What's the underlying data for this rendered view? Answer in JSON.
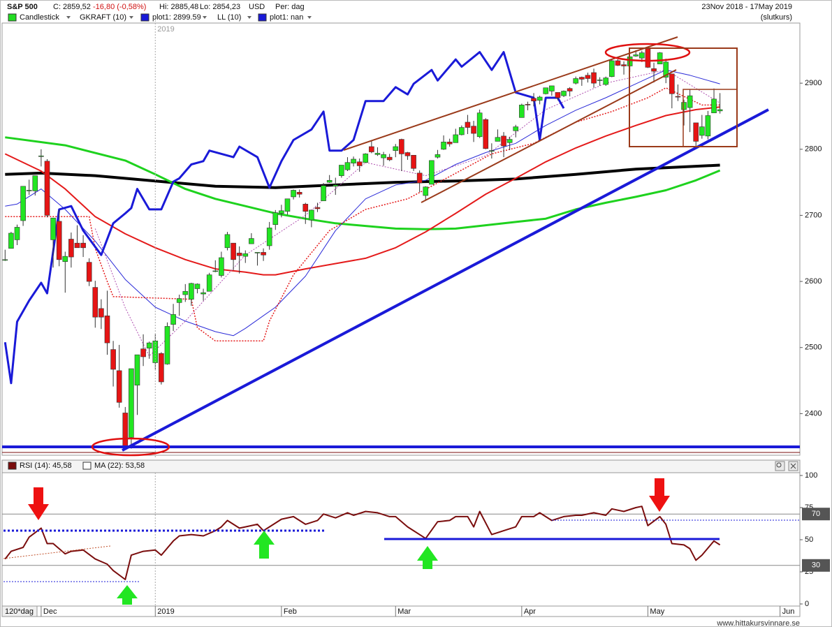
{
  "header": {
    "symbol": "S&P 500",
    "close": "C: 2859,52",
    "change": "-16,80 (-0,58%)",
    "high": "Hi: 2885,48",
    "low": "Lo: 2854,23",
    "currency": "USD",
    "period": "Per: dag",
    "range": "23Nov 2018 - 17May 2019",
    "mode": "(slutkurs)"
  },
  "watermark": "www.hittakursvinnare.se",
  "chart_data": [
    {
      "type": "candlestick",
      "legend": [
        {
          "label": "Candlestick",
          "color": "#22dd22"
        },
        {
          "label": "GKRAFT (10)"
        },
        {
          "label": "plot1: 2899.59",
          "color": "#1a1ad8"
        },
        {
          "label": "LL (10)"
        },
        {
          "label": "plot1: nan",
          "color": "#1a1ad8"
        }
      ],
      "up_color": "#22e622",
      "down_color": "#e61414",
      "xlim": [
        -0.5,
        132.3
      ],
      "ylim": [
        2337,
        2991
      ],
      "yticks": [
        2400,
        2500,
        2600,
        2700,
        2800,
        2900
      ],
      "open": [
        2633,
        2650,
        2663,
        2692,
        2737,
        2737,
        2790,
        2782,
        2663,
        2691,
        2630,
        2664,
        2658,
        2658,
        2629,
        2591,
        2559,
        2548,
        2497,
        2465,
        2401,
        2364,
        2443,
        2498,
        2499,
        2477,
        2491,
        2475,
        2535,
        2568,
        2580,
        2573,
        2589,
        2581,
        2585,
        2615,
        2609,
        2651,
        2658,
        2643,
        2638,
        2657,
        2644,
        2644,
        2654,
        2686,
        2703,
        2706,
        2728,
        2735,
        2717,
        2693,
        2712,
        2722,
        2750,
        2744,
        2760,
        2769,
        2779,
        2781,
        2780,
        2804,
        2792,
        2787,
        2788,
        2798,
        2815,
        2795,
        2791,
        2764,
        2730,
        2747,
        2788,
        2800,
        2811,
        2810,
        2822,
        2841,
        2835,
        2819,
        2845,
        2797,
        2812,
        2820,
        2810,
        2828,
        2848,
        2868,
        2877,
        2874,
        2884,
        2888,
        2886,
        2881,
        2892,
        2900,
        2909,
        2912,
        2916,
        2904,
        2898,
        2910,
        2934,
        2928,
        2926,
        2941,
        2938,
        2952,
        2922,
        2929,
        2909,
        2914,
        2880,
        2860,
        2863,
        2840,
        2821,
        2820,
        2855,
        2858
      ],
      "high": [
        2648,
        2675,
        2686,
        2744,
        2754,
        2760,
        2800,
        2785,
        2696,
        2708,
        2645,
        2674,
        2685,
        2670,
        2635,
        2601,
        2573,
        2586,
        2510,
        2504,
        2410,
        2468,
        2489,
        2520,
        2509,
        2520,
        2493,
        2538,
        2566,
        2580,
        2596,
        2598,
        2597,
        2589,
        2613,
        2632,
        2645,
        2675,
        2658,
        2653,
        2647,
        2673,
        2644,
        2650,
        2690,
        2708,
        2716,
        2725,
        2739,
        2739,
        2719,
        2708,
        2719,
        2749,
        2761,
        2757,
        2776,
        2788,
        2789,
        2786,
        2794,
        2813,
        2803,
        2796,
        2793,
        2808,
        2816,
        2796,
        2791,
        2768,
        2744,
        2783,
        2799,
        2821,
        2816,
        2831,
        2836,
        2852,
        2843,
        2860,
        2847,
        2809,
        2830,
        2826,
        2819,
        2837,
        2869,
        2872,
        2885,
        2881,
        2893,
        2896,
        2886,
        2889,
        2894,
        2910,
        2910,
        2916,
        2922,
        2909,
        2910,
        2936,
        2936,
        2933,
        2940,
        2950,
        2949,
        2954,
        2931,
        2947,
        2937,
        2914,
        2898,
        2875,
        2891,
        2840,
        2852,
        2858,
        2892,
        2885
      ],
      "low": [
        2631,
        2650,
        2655,
        2684,
        2731,
        2730,
        2774,
        2697,
        2621,
        2623,
        2583,
        2621,
        2651,
        2637,
        2593,
        2530,
        2528,
        2489,
        2441,
        2409,
        2351,
        2347,
        2398,
        2472,
        2483,
        2467,
        2444,
        2474,
        2525,
        2548,
        2569,
        2563,
        2582,
        2571,
        2585,
        2614,
        2606,
        2647,
        2617,
        2612,
        2628,
        2657,
        2624,
        2631,
        2648,
        2678,
        2697,
        2701,
        2724,
        2727,
        2687,
        2682,
        2705,
        2722,
        2749,
        2731,
        2757,
        2767,
        2774,
        2766,
        2779,
        2794,
        2790,
        2775,
        2782,
        2788,
        2767,
        2784,
        2767,
        2735,
        2722,
        2747,
        2786,
        2799,
        2804,
        2810,
        2821,
        2823,
        2811,
        2817,
        2800,
        2786,
        2812,
        2788,
        2799,
        2818,
        2848,
        2859,
        2865,
        2868,
        2883,
        2881,
        2874,
        2879,
        2880,
        2898,
        2896,
        2901,
        2893,
        2896,
        2896,
        2909,
        2926,
        2913,
        2917,
        2940,
        2932,
        2923,
        2901,
        2929,
        2900,
        2862,
        2873,
        2836,
        2826,
        2801,
        2816,
        2815,
        2855,
        2854
      ],
      "close": [
        2633,
        2673,
        2682,
        2744,
        2738,
        2760,
        2790,
        2700,
        2696,
        2633,
        2638,
        2637,
        2651,
        2651,
        2600,
        2546,
        2546,
        2507,
        2467,
        2417,
        2351,
        2468,
        2489,
        2486,
        2507,
        2510,
        2448,
        2532,
        2550,
        2574,
        2585,
        2597,
        2596,
        2583,
        2610,
        2616,
        2636,
        2671,
        2633,
        2639,
        2642,
        2665,
        2644,
        2640,
        2681,
        2704,
        2707,
        2725,
        2738,
        2732,
        2706,
        2708,
        2710,
        2745,
        2753,
        2746,
        2776,
        2780,
        2785,
        2775,
        2793,
        2796,
        2794,
        2792,
        2784,
        2804,
        2793,
        2790,
        2771,
        2749,
        2743,
        2783,
        2792,
        2811,
        2808,
        2822,
        2833,
        2833,
        2824,
        2855,
        2801,
        2798,
        2818,
        2805,
        2815,
        2834,
        2867,
        2867,
        2873,
        2879,
        2893,
        2896,
        2878,
        2888,
        2888,
        2907,
        2906,
        2907,
        2900,
        2905,
        2908,
        2934,
        2927,
        2926,
        2940,
        2943,
        2946,
        2924,
        2918,
        2946,
        2932,
        2884,
        2879,
        2871,
        2881,
        2812,
        2834,
        2851,
        2876,
        2860
      ],
      "overlays": [
        {
          "color": "#000000",
          "width": 4,
          "x": [
            0,
            6,
            15,
            25,
            35,
            45,
            55,
            65,
            75,
            85,
            95,
            105,
            119
          ],
          "values": [
            2762,
            2764,
            2760,
            2752,
            2744,
            2742,
            2746,
            2750,
            2752,
            2755,
            2762,
            2770,
            2776
          ]
        },
        {
          "color": "#1ed21e",
          "width": 3,
          "x": [
            0,
            10,
            20,
            25,
            30,
            35,
            40,
            45,
            50,
            55,
            60,
            65,
            70,
            75,
            80,
            85,
            90,
            95,
            100,
            105,
            110,
            115,
            119
          ],
          "values": [
            2818,
            2806,
            2783,
            2762,
            2740,
            2725,
            2714,
            2703,
            2695,
            2688,
            2684,
            2680,
            2679,
            2680,
            2685,
            2690,
            2695,
            2709,
            2719,
            2728,
            2738,
            2753,
            2768
          ]
        },
        {
          "color": "#e41a1a",
          "width": 2,
          "x": [
            0,
            6,
            10,
            15,
            20,
            25,
            30,
            35,
            40,
            43,
            45,
            50,
            55,
            60,
            65,
            70,
            75,
            80,
            85,
            90,
            95,
            100,
            105,
            110,
            115,
            119
          ],
          "values": [
            2793,
            2767,
            2740,
            2698,
            2672,
            2651,
            2633,
            2619,
            2614,
            2610,
            2610,
            2619,
            2627,
            2635,
            2651,
            2675,
            2703,
            2732,
            2756,
            2781,
            2802,
            2820,
            2836,
            2851,
            2860,
            2864
          ]
        },
        {
          "color": "#2a2ad8",
          "width": 1,
          "x": [
            0,
            2,
            6,
            10,
            15,
            20,
            25,
            30,
            35,
            38,
            40,
            45,
            50,
            55,
            60,
            65,
            70,
            75,
            80,
            85,
            90,
            95,
            100,
            105,
            110,
            114,
            119
          ],
          "values": [
            2714,
            2717,
            2740,
            2709,
            2661,
            2603,
            2561,
            2540,
            2524,
            2518,
            2529,
            2561,
            2608,
            2677,
            2725,
            2746,
            2753,
            2777,
            2795,
            2809,
            2836,
            2859,
            2878,
            2899,
            2920,
            2912,
            2899
          ]
        },
        {
          "color": "#e41a1a",
          "width": 1.5,
          "dash": true,
          "x": [
            0,
            14,
            15,
            17,
            18,
            31,
            32,
            35,
            43,
            44,
            48,
            54,
            60,
            67,
            72,
            81,
            88,
            95,
            101,
            107,
            110,
            113,
            116,
            119
          ],
          "values": [
            2698,
            2698,
            2650,
            2600,
            2577,
            2573,
            2530,
            2510,
            2510,
            2540,
            2610,
            2677,
            2709,
            2725,
            2749,
            2793,
            2809,
            2841,
            2857,
            2878,
            2893,
            2880,
            2867,
            2867
          ]
        },
        {
          "color": "#b050b0",
          "width": 1,
          "dash": true,
          "x": [
            15,
            20,
            24,
            30,
            40,
            50,
            60,
            70,
            80,
            90,
            100,
            110,
            119
          ],
          "values": [
            2680,
            2560,
            2487,
            2540,
            2640,
            2700,
            2780,
            2760,
            2790,
            2860,
            2900,
            2920,
            2870
          ]
        },
        {
          "color": "#1a1ad8",
          "width": 3,
          "x": [
            0,
            1,
            2,
            4,
            6,
            7,
            9,
            11,
            13,
            16,
            18,
            20,
            21,
            22,
            24,
            26,
            28,
            29,
            31,
            33,
            34,
            38,
            39,
            42,
            44,
            46,
            48,
            51,
            53,
            54,
            56,
            58,
            60,
            63,
            65,
            67,
            68,
            71,
            72,
            75,
            76,
            79,
            81,
            83,
            85,
            88,
            89,
            90,
            92,
            93
          ],
          "values": [
            2508,
            2446,
            2539,
            2571,
            2598,
            2582,
            2709,
            2714,
            2677,
            2640,
            2688,
            2703,
            2711,
            2740,
            2709,
            2709,
            2751,
            2756,
            2777,
            2782,
            2798,
            2788,
            2804,
            2788,
            2742,
            2782,
            2814,
            2830,
            2857,
            2798,
            2798,
            2814,
            2873,
            2873,
            2894,
            2883,
            2899,
            2920,
            2904,
            2936,
            2925,
            2947,
            2920,
            2947,
            2886,
            2878,
            2814,
            2878,
            2878,
            2862
          ]
        }
      ]
    },
    {
      "type": "line",
      "legend": [
        {
          "label": "RSI (14): 45,58",
          "color": "#7a0d0d"
        },
        {
          "label": "MA (22): 53,58",
          "color": "#ffffff"
        }
      ],
      "color": "#7a0d0d",
      "xlim": [
        -0.5,
        132.3
      ],
      "ylim": [
        0,
        100
      ],
      "yticks": [
        0,
        25,
        50,
        75,
        100
      ],
      "levels": [
        70,
        30
      ],
      "period_label": "120*dag",
      "xticks": [
        {
          "value": 6,
          "label": "Dec"
        },
        {
          "value": 25,
          "label": "2019"
        },
        {
          "value": 46,
          "label": "Feb"
        },
        {
          "value": 65,
          "label": "Mar"
        },
        {
          "value": 86,
          "label": "Apr"
        },
        {
          "value": 107,
          "label": "May"
        },
        {
          "value": 129,
          "label": "Jun"
        }
      ],
      "x": [
        0,
        1,
        3,
        4,
        6,
        7,
        8,
        10,
        11,
        13,
        15,
        17,
        18,
        20,
        21,
        23,
        25,
        26,
        28,
        29,
        31,
        33,
        35,
        36,
        37,
        39,
        40,
        42,
        43,
        44,
        46,
        48,
        49,
        50,
        52,
        53,
        55,
        57,
        58,
        60,
        62,
        64,
        65,
        67,
        68,
        70,
        72,
        74,
        75,
        77,
        78,
        79,
        81,
        83,
        85,
        86,
        88,
        89,
        91,
        93,
        95,
        96,
        98,
        100,
        101,
        103,
        105,
        106,
        107,
        109,
        110,
        111,
        113,
        114,
        115,
        116,
        118,
        119
      ],
      "values": [
        35,
        41,
        44,
        52,
        59,
        47,
        47,
        39,
        41,
        42,
        35,
        31,
        26,
        19,
        38,
        41,
        42,
        38,
        49,
        53,
        54,
        53,
        57,
        60,
        65,
        59,
        60,
        62,
        57,
        60,
        66,
        68,
        65,
        62,
        65,
        70,
        67,
        71,
        69,
        72,
        71,
        68,
        68,
        60,
        57,
        51,
        64,
        65,
        68,
        68,
        60,
        72,
        54,
        57,
        60,
        68,
        68,
        71,
        65,
        68,
        69,
        69,
        71,
        69,
        74,
        72,
        75,
        76,
        61,
        68,
        62,
        47,
        46,
        43,
        34,
        38,
        49,
        46
      ]
    }
  ]
}
